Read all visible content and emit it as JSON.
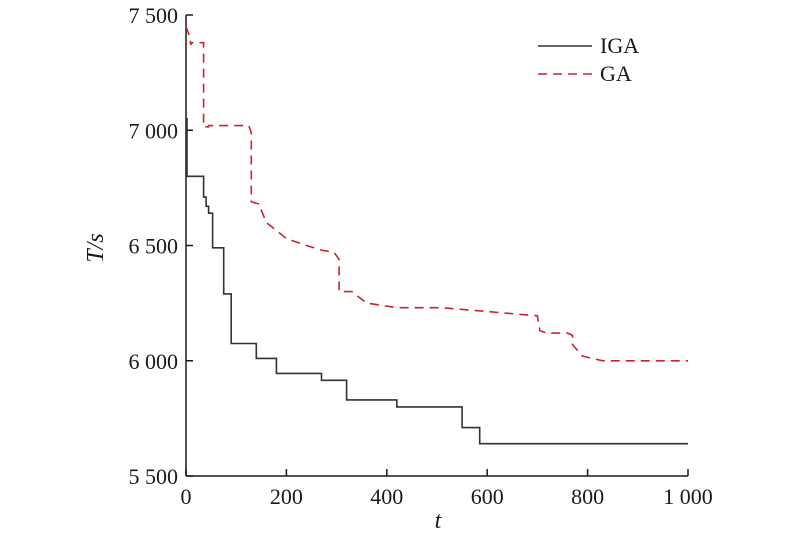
{
  "chart_data": {
    "type": "line",
    "xlabel": "t",
    "ylabel": "T/s",
    "xlim": [
      0,
      1000
    ],
    "ylim": [
      5500,
      7500
    ],
    "xticks": [
      0,
      200,
      400,
      600,
      800,
      1000
    ],
    "xtick_labels": [
      "0",
      "200",
      "400",
      "600",
      "800",
      "1 000"
    ],
    "yticks": [
      5500,
      6000,
      6500,
      7000,
      7500
    ],
    "ytick_labels": [
      "5 500",
      "6 000",
      "6 500",
      "7 000",
      "7 500"
    ],
    "grid": false,
    "legend_position": "top-right",
    "series": [
      {
        "name": "IGA",
        "color": "#333333",
        "style": "solid",
        "x": [
          0,
          2,
          2,
          35,
          35,
          40,
          40,
          45,
          45,
          53,
          53,
          75,
          75,
          90,
          90,
          140,
          140,
          180,
          180,
          270,
          270,
          320,
          320,
          420,
          420,
          550,
          550,
          585,
          585,
          1000
        ],
        "y": [
          7050,
          7050,
          6800,
          6800,
          6710,
          6710,
          6670,
          6670,
          6640,
          6640,
          6490,
          6490,
          6290,
          6290,
          6075,
          6075,
          6010,
          6010,
          5945,
          5945,
          5915,
          5915,
          5830,
          5830,
          5800,
          5800,
          5710,
          5710,
          5640,
          5640
        ]
      },
      {
        "name": "GA",
        "color": "#cc2233",
        "style": "dashed",
        "x": [
          0,
          5,
          10,
          10,
          35,
          35,
          45,
          45,
          125,
          130,
          130,
          145,
          160,
          200,
          240,
          270,
          295,
          305,
          305,
          330,
          360,
          420,
          480,
          510,
          700,
          705,
          720,
          760,
          770,
          770,
          790,
          830,
          1000
        ],
        "y": [
          7450,
          7420,
          7370,
          7380,
          7380,
          7015,
          7015,
          7020,
          7020,
          6990,
          6690,
          6680,
          6600,
          6530,
          6500,
          6480,
          6470,
          6440,
          6300,
          6300,
          6250,
          6230,
          6230,
          6230,
          6195,
          6130,
          6120,
          6120,
          6110,
          6070,
          6020,
          6000,
          6000
        ]
      }
    ]
  }
}
